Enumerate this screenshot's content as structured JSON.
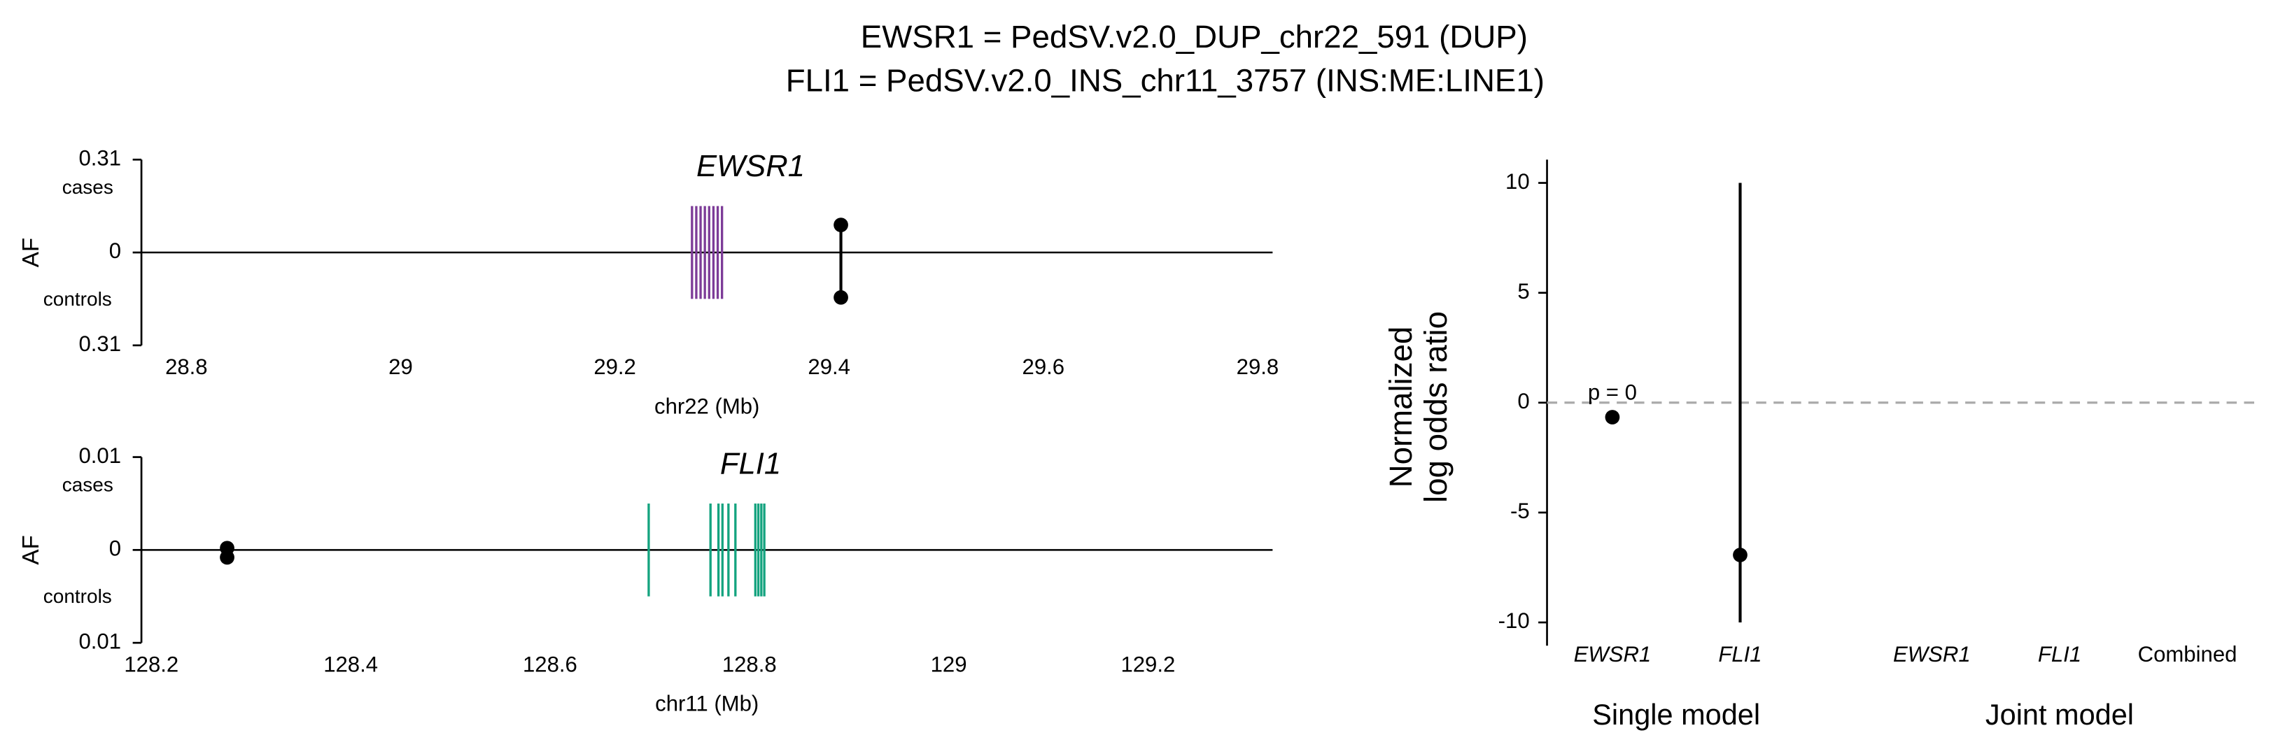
{
  "title_lines": [
    "EWSR1 = PedSV.v2.0_DUP_chr22_591 (DUP)",
    "FLI1 = PedSV.v2.0_INS_chr11_3757 (INS:ME:LINE1)"
  ],
  "chart_data": [
    {
      "type": "gene_track",
      "gene": "EWSR1",
      "xlabel": "chr22 (Mb)",
      "ylabel": "AF",
      "top_label": "cases",
      "bottom_label": "controls",
      "color": "#7d3c98",
      "xlim": [
        28.758,
        29.814
      ],
      "xticks": [
        28.8,
        29.0,
        29.2,
        29.4,
        29.6,
        29.8
      ],
      "ylim": [
        -0.31,
        0.31
      ],
      "yticks": [
        {
          "value": -0.31,
          "label": "0.31"
        },
        0,
        0.31
      ],
      "exons": [
        29.272,
        29.276,
        29.28,
        29.284,
        29.288,
        29.292,
        29.296,
        29.3
      ],
      "variant": {
        "x": 29.411,
        "cases": 0.092,
        "controls": 0.15
      }
    },
    {
      "type": "gene_track",
      "gene": "FLI1",
      "xlabel": "chr11 (Mb)",
      "ylabel": "AF",
      "top_label": "cases",
      "bottom_label": "controls",
      "color": "#14a37f",
      "xlim": [
        128.19,
        129.325
      ],
      "xticks": [
        128.2,
        128.4,
        128.6,
        128.8,
        129.0,
        129.2
      ],
      "ylim": [
        -0.01,
        0.01
      ],
      "yticks": [
        {
          "value": -0.01,
          "label": "0.01"
        },
        0,
        0.01
      ],
      "exons": [
        128.699,
        128.761,
        128.769,
        128.773,
        128.779,
        128.786,
        128.806,
        128.809,
        128.812,
        128.815
      ],
      "variant": {
        "x": 128.276,
        "cases": 0.0002,
        "controls": 0.0008
      }
    },
    {
      "type": "forest",
      "ylabel": [
        "Normalized",
        "log odds ratio"
      ],
      "groups": [
        {
          "name": "Single model",
          "categories": [
            "EWSR1",
            "FLI1"
          ]
        },
        {
          "name": "Joint model",
          "categories": [
            "EWSR1",
            "FLI1",
            "Combined"
          ]
        }
      ],
      "values": [
        -0.66,
        -6.93,
        null,
        null,
        null
      ],
      "ci_low": [
        null,
        -10,
        null,
        null,
        null
      ],
      "ci_high": [
        null,
        10,
        null,
        null,
        null
      ],
      "annotations": [
        "p = 0",
        null,
        null,
        null,
        null
      ],
      "ylim": [
        -11.06,
        11.06
      ],
      "yticks": [
        -10,
        -5,
        0,
        5,
        10
      ],
      "reference_line": 0,
      "color": "#000000"
    }
  ]
}
